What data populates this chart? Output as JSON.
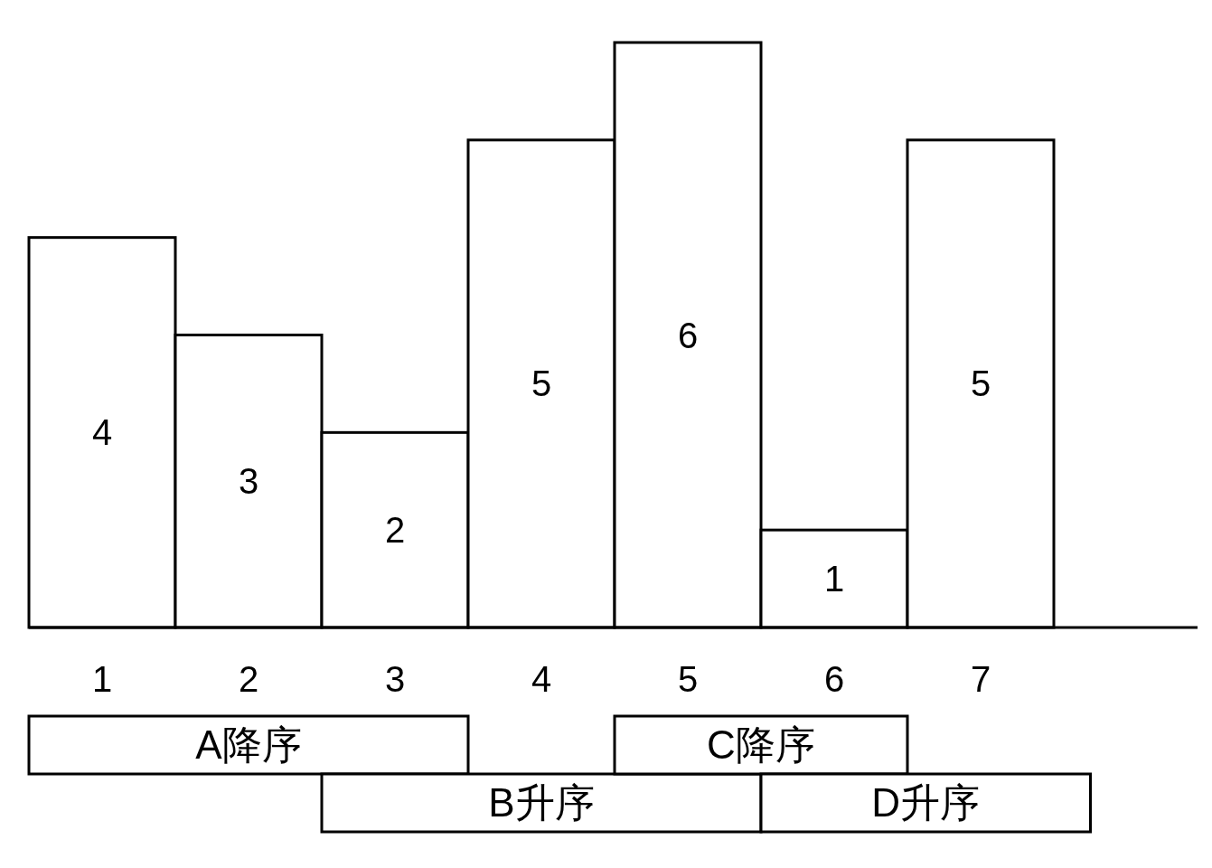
{
  "chart_data": {
    "type": "bar",
    "categories": [
      "1",
      "2",
      "3",
      "4",
      "5",
      "6",
      "7"
    ],
    "values": [
      4,
      3,
      2,
      5,
      6,
      1,
      5
    ],
    "color": "#ffffff",
    "data_labels": true,
    "annotations": [
      "A降序",
      "B升序",
      "C降序",
      "D升序"
    ]
  }
}
